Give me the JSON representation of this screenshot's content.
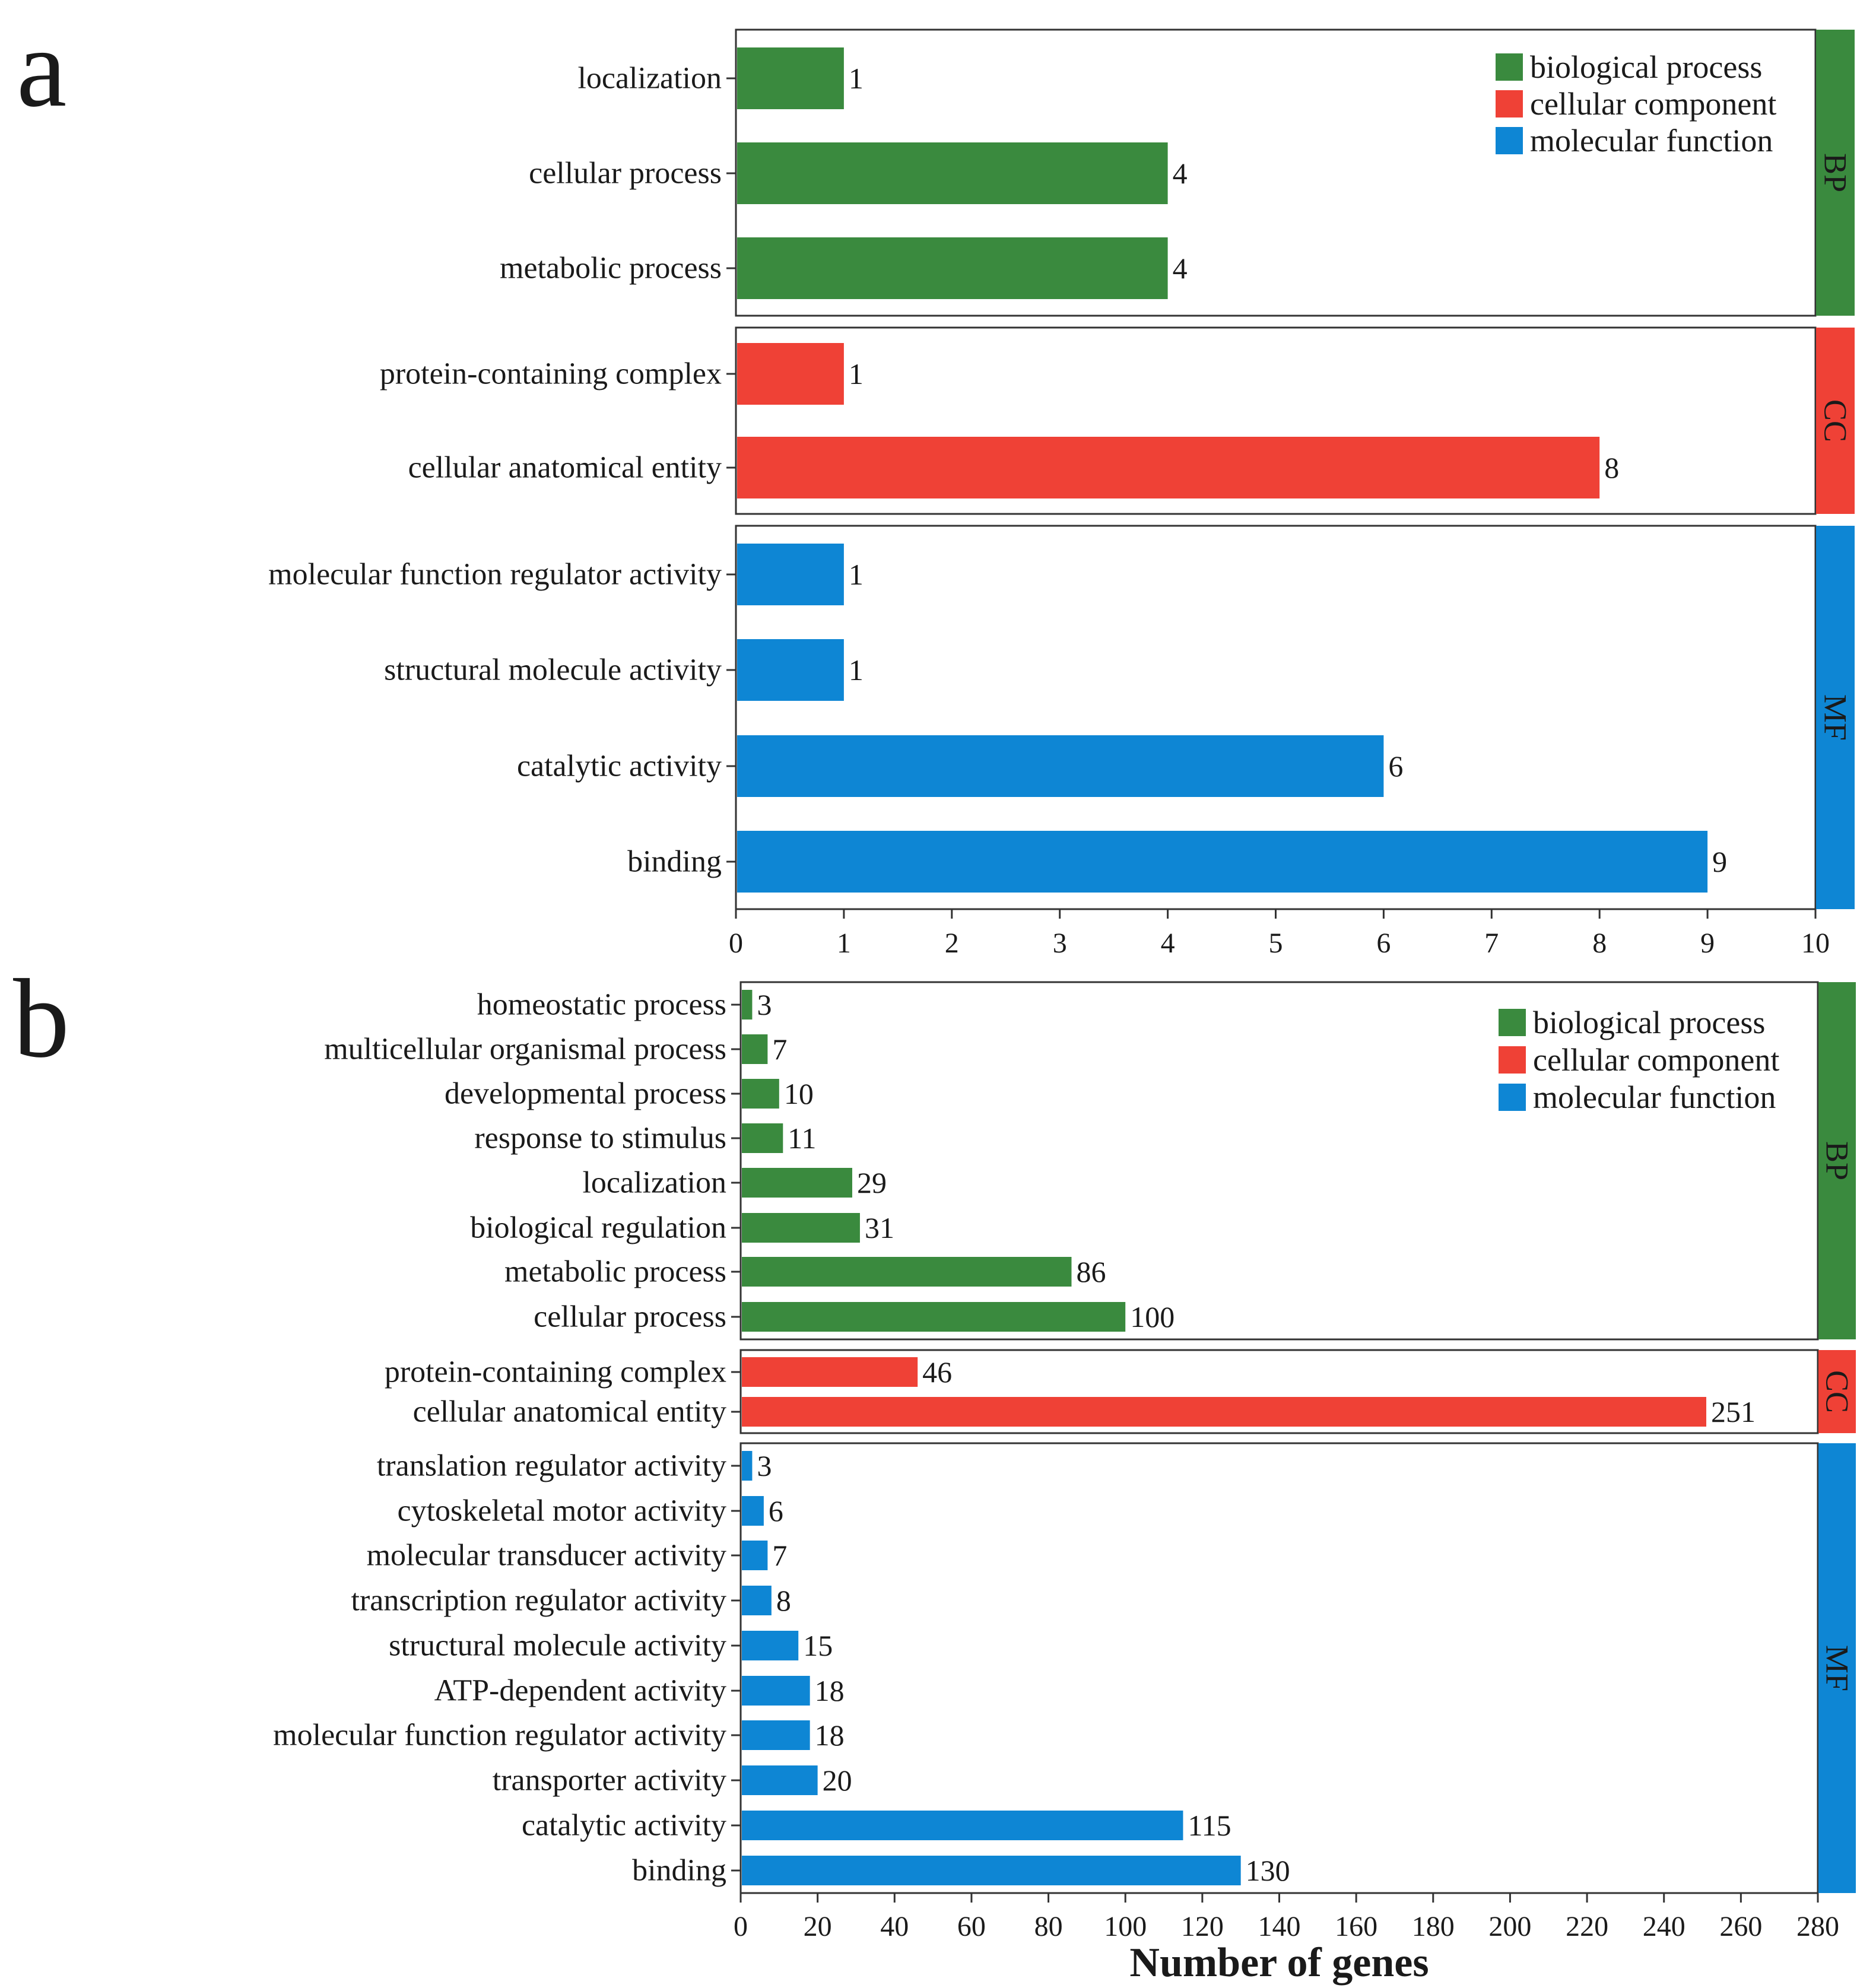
{
  "colors": {
    "biological_process": "#3a8a3e",
    "cellular_component": "#ef4136",
    "molecular_function": "#0e86d4"
  },
  "chart_data": [
    {
      "type": "bar",
      "orientation": "horizontal",
      "panel_label": "a",
      "xlabel": "",
      "xlim": [
        0,
        10
      ],
      "xticks": [
        0,
        1,
        2,
        3,
        4,
        5,
        6,
        7,
        8,
        9,
        10
      ],
      "legend": {
        "position": "top-right",
        "entries": [
          "biological process",
          "cellular component",
          "molecular function"
        ]
      },
      "groups": [
        {
          "key": "BP",
          "label": "BP",
          "category": "biological process",
          "categories": [
            "localization",
            "cellular process",
            "metabolic process"
          ],
          "values": [
            1,
            4,
            4
          ]
        },
        {
          "key": "CC",
          "label": "CC",
          "category": "cellular component",
          "categories": [
            "protein-containing complex",
            "cellular anatomical entity"
          ],
          "values": [
            1,
            8
          ]
        },
        {
          "key": "MF",
          "label": "MF",
          "category": "molecular function",
          "categories": [
            "molecular function regulator activity",
            "structural molecule activity",
            "catalytic activity",
            "binding"
          ],
          "values": [
            1,
            1,
            6,
            9
          ]
        }
      ]
    },
    {
      "type": "bar",
      "orientation": "horizontal",
      "panel_label": "b",
      "xlabel": "Number of genes",
      "xlim": [
        0,
        280
      ],
      "xticks": [
        0,
        20,
        40,
        60,
        80,
        100,
        120,
        140,
        160,
        180,
        200,
        220,
        240,
        260,
        280
      ],
      "legend": {
        "position": "top-right",
        "entries": [
          "biological process",
          "cellular component",
          "molecular function"
        ]
      },
      "groups": [
        {
          "key": "BP",
          "label": "BP",
          "category": "biological process",
          "categories": [
            "homeostatic process",
            "multicellular organismal process",
            "developmental process",
            "response to stimulus",
            "localization",
            "biological regulation",
            "metabolic process",
            "cellular process"
          ],
          "values": [
            3,
            7,
            10,
            11,
            29,
            31,
            86,
            100
          ]
        },
        {
          "key": "CC",
          "label": "CC",
          "category": "cellular component",
          "categories": [
            "protein-containing complex",
            "cellular anatomical entity"
          ],
          "values": [
            46,
            251
          ]
        },
        {
          "key": "MF",
          "label": "MF",
          "category": "molecular function",
          "categories": [
            "translation regulator activity",
            "cytoskeletal motor activity",
            "molecular transducer activity",
            "transcription regulator activity",
            "structural molecule activity",
            "ATP-dependent activity",
            "molecular function regulator activity",
            "transporter activity",
            "catalytic activity",
            "binding"
          ],
          "values": [
            3,
            6,
            7,
            8,
            15,
            18,
            18,
            20,
            115,
            130
          ]
        }
      ]
    }
  ]
}
